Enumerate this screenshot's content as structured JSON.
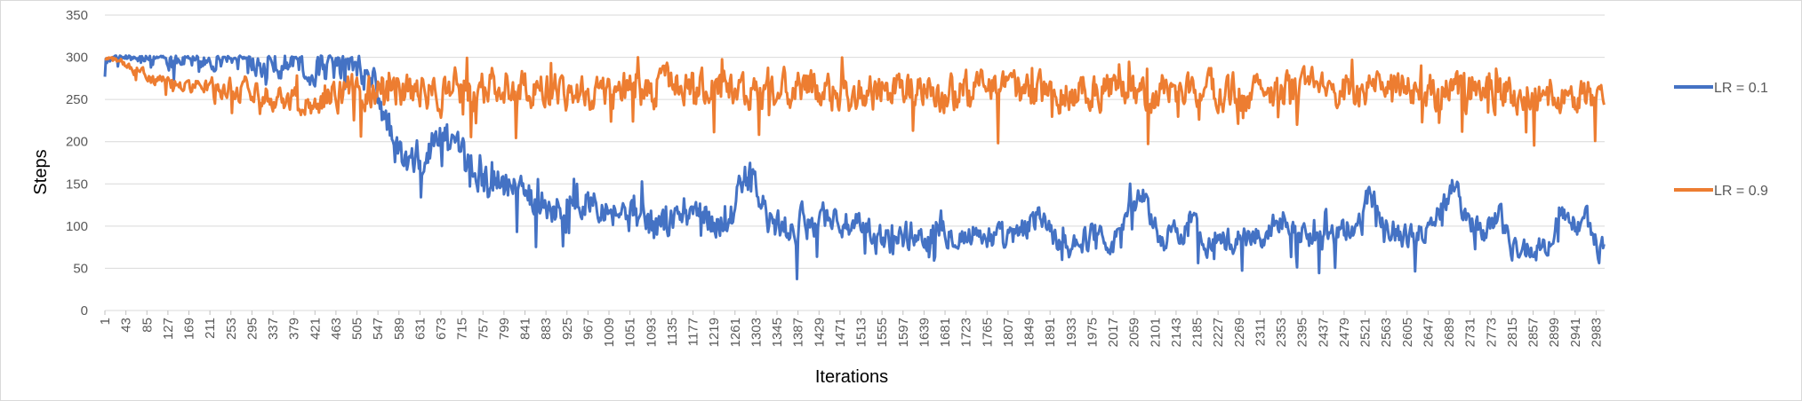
{
  "chart_data": {
    "type": "line",
    "title": "",
    "xlabel": "Iterations",
    "ylabel": "Steps",
    "ylim": [
      0,
      350
    ],
    "yticks": [
      "0",
      "50",
      "100",
      "150",
      "200",
      "250",
      "300",
      "350"
    ],
    "xlim": [
      1,
      3000
    ],
    "xticks": [
      "1",
      "43",
      "85",
      "127",
      "169",
      "211",
      "253",
      "295",
      "337",
      "379",
      "421",
      "463",
      "505",
      "547",
      "589",
      "631",
      "673",
      "715",
      "757",
      "799",
      "841",
      "883",
      "925",
      "967",
      "1009",
      "1051",
      "1093",
      "1135",
      "1177",
      "1219",
      "1261",
      "1303",
      "1345",
      "1387",
      "1429",
      "1471",
      "1513",
      "1555",
      "1597",
      "1639",
      "1681",
      "1723",
      "1765",
      "1807",
      "1849",
      "1891",
      "1933",
      "1975",
      "2017",
      "2059",
      "2101",
      "2143",
      "2185",
      "2227",
      "2269",
      "2311",
      "2353",
      "2395",
      "2437",
      "2479",
      "2521",
      "2563",
      "2605",
      "2647",
      "2689",
      "2731",
      "2773",
      "2815",
      "2857",
      "2899",
      "2941",
      "2983"
    ],
    "grid": "horizontal",
    "legend_position": "right",
    "series": [
      {
        "name": "LR = 0.1",
        "color": "#4472C4",
        "points": [
          [
            1,
            300
          ],
          [
            100,
            300
          ],
          [
            200,
            299
          ],
          [
            300,
            298
          ],
          [
            340,
            296
          ],
          [
            380,
            292
          ],
          [
            420,
            285
          ],
          [
            450,
            288
          ],
          [
            480,
            293
          ],
          [
            500,
            290
          ],
          [
            530,
            275
          ],
          [
            547,
            258
          ],
          [
            560,
            228
          ],
          [
            580,
            195
          ],
          [
            600,
            172
          ],
          [
            620,
            172
          ],
          [
            640,
            178
          ],
          [
            660,
            200
          ],
          [
            680,
            210
          ],
          [
            700,
            182
          ],
          [
            720,
            168
          ],
          [
            760,
            158
          ],
          [
            800,
            150
          ],
          [
            840,
            140
          ],
          [
            880,
            130
          ],
          [
            920,
            118
          ],
          [
            960,
            125
          ],
          [
            980,
            140
          ],
          [
            1000,
            128
          ],
          [
            1040,
            115
          ],
          [
            1080,
            105
          ],
          [
            1100,
            98
          ],
          [
            1140,
            108
          ],
          [
            1180,
            120
          ],
          [
            1220,
            105
          ],
          [
            1260,
            115
          ],
          [
            1280,
            160
          ],
          [
            1300,
            150
          ],
          [
            1330,
            102
          ],
          [
            1360,
            95
          ],
          [
            1400,
            100
          ],
          [
            1430,
            115
          ],
          [
            1460,
            110
          ],
          [
            1500,
            95
          ],
          [
            1530,
            88
          ],
          [
            1560,
            82
          ],
          [
            1600,
            90
          ],
          [
            1640,
            88
          ],
          [
            1680,
            100
          ],
          [
            1720,
            88
          ],
          [
            1760,
            92
          ],
          [
            1800,
            80
          ],
          [
            1840,
            92
          ],
          [
            1870,
            118
          ],
          [
            1900,
            85
          ],
          [
            1930,
            80
          ],
          [
            1960,
            85
          ],
          [
            1990,
            95
          ],
          [
            2020,
            80
          ],
          [
            2050,
            125
          ],
          [
            2080,
            135
          ],
          [
            2110,
            85
          ],
          [
            2140,
            88
          ],
          [
            2170,
            105
          ],
          [
            2200,
            85
          ],
          [
            2240,
            82
          ],
          [
            2280,
            85
          ],
          [
            2320,
            90
          ],
          [
            2360,
            115
          ],
          [
            2400,
            90
          ],
          [
            2440,
            85
          ],
          [
            2480,
            90
          ],
          [
            2510,
            100
          ],
          [
            2530,
            140
          ],
          [
            2560,
            110
          ],
          [
            2600,
            85
          ],
          [
            2640,
            95
          ],
          [
            2680,
            130
          ],
          [
            2700,
            160
          ],
          [
            2720,
            110
          ],
          [
            2760,
            95
          ],
          [
            2790,
            115
          ],
          [
            2810,
            80
          ],
          [
            2830,
            72
          ],
          [
            2870,
            72
          ],
          [
            2890,
            80
          ],
          [
            2910,
            118
          ],
          [
            2930,
            100
          ],
          [
            2960,
            110
          ],
          [
            2980,
            80
          ],
          [
            3000,
            72
          ]
        ],
        "noise": [
          8,
          15,
          22,
          18,
          18,
          16,
          14,
          14,
          14,
          14
        ]
      },
      {
        "name": "LR = 0.9",
        "color": "#ED7D31",
        "points": [
          [
            1,
            298
          ],
          [
            30,
            296
          ],
          [
            60,
            285
          ],
          [
            100,
            272
          ],
          [
            140,
            268
          ],
          [
            200,
            265
          ],
          [
            300,
            262
          ],
          [
            350,
            255
          ],
          [
            400,
            245
          ],
          [
            450,
            255
          ],
          [
            500,
            262
          ],
          [
            550,
            260
          ],
          [
            600,
            255
          ],
          [
            650,
            258
          ],
          [
            700,
            262
          ],
          [
            800,
            265
          ],
          [
            900,
            262
          ],
          [
            1000,
            258
          ],
          [
            1100,
            262
          ],
          [
            1200,
            262
          ],
          [
            1300,
            258
          ],
          [
            1400,
            262
          ],
          [
            1500,
            258
          ],
          [
            1600,
            260
          ],
          [
            1700,
            258
          ],
          [
            1800,
            260
          ],
          [
            1900,
            258
          ],
          [
            2000,
            262
          ],
          [
            2100,
            258
          ],
          [
            2200,
            260
          ],
          [
            2300,
            258
          ],
          [
            2400,
            260
          ],
          [
            2500,
            258
          ],
          [
            2600,
            260
          ],
          [
            2700,
            258
          ],
          [
            2800,
            260
          ],
          [
            2900,
            258
          ],
          [
            3000,
            258
          ]
        ],
        "noise": [
          3,
          14,
          20,
          20,
          20,
          20,
          20,
          20,
          20,
          20
        ]
      }
    ]
  }
}
